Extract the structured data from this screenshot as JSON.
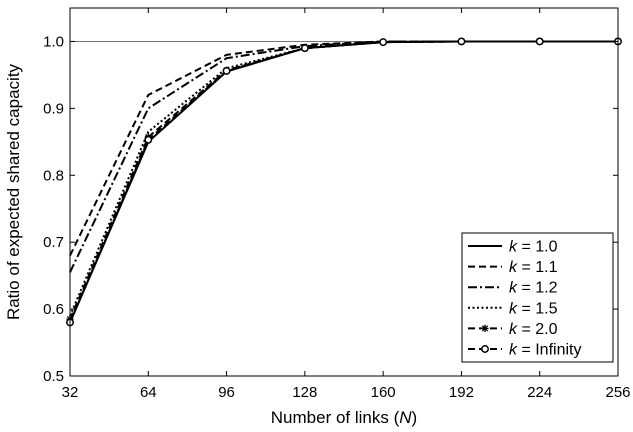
{
  "chart_data": {
    "type": "line",
    "xlabel": "Number of links",
    "xlabel_var": "N",
    "ylabel": "Ratio of expected shared capacity",
    "x": [
      32,
      64,
      96,
      128,
      160,
      192,
      224,
      256
    ],
    "xticks": [
      "32",
      "64",
      "96",
      "128",
      "160",
      "192",
      "224",
      "256"
    ],
    "yticks": [
      "0.5",
      "0.6",
      "0.7",
      "0.8",
      "0.9",
      "1.0"
    ],
    "xlim": [
      32,
      256
    ],
    "ylim": [
      0.5,
      1.05
    ],
    "grid": false,
    "reference_line": 1.0,
    "legend_position": "bottom-right",
    "series": [
      {
        "name": "= 1.0",
        "k": "k",
        "style": "solid",
        "marker": "none",
        "values": [
          0.58,
          0.85,
          0.955,
          0.99,
          0.999,
          1.0,
          1.0,
          1.0
        ]
      },
      {
        "name": "= 1.1",
        "k": "k",
        "style": "dashed",
        "marker": "none",
        "values": [
          0.68,
          0.92,
          0.98,
          0.995,
          1.0,
          1.0,
          1.0,
          1.0
        ]
      },
      {
        "name": "= 1.2",
        "k": "k",
        "style": "dashdot",
        "marker": "none",
        "values": [
          0.655,
          0.9,
          0.975,
          0.993,
          1.0,
          1.0,
          1.0,
          1.0
        ]
      },
      {
        "name": "= 1.5",
        "k": "k",
        "style": "dotted",
        "marker": "none",
        "values": [
          0.59,
          0.865,
          0.96,
          0.99,
          0.999,
          1.0,
          1.0,
          1.0
        ]
      },
      {
        "name": "= 2.0",
        "k": "k",
        "style": "dashed",
        "marker": "star",
        "values": [
          0.585,
          0.857,
          0.957,
          0.99,
          0.999,
          1.0,
          1.0,
          1.0
        ]
      },
      {
        "name": "= Infinity",
        "k": "k",
        "style": "dashed",
        "marker": "circle",
        "values": [
          0.58,
          0.853,
          0.956,
          0.99,
          0.999,
          1.0,
          1.0,
          1.0
        ]
      }
    ]
  }
}
